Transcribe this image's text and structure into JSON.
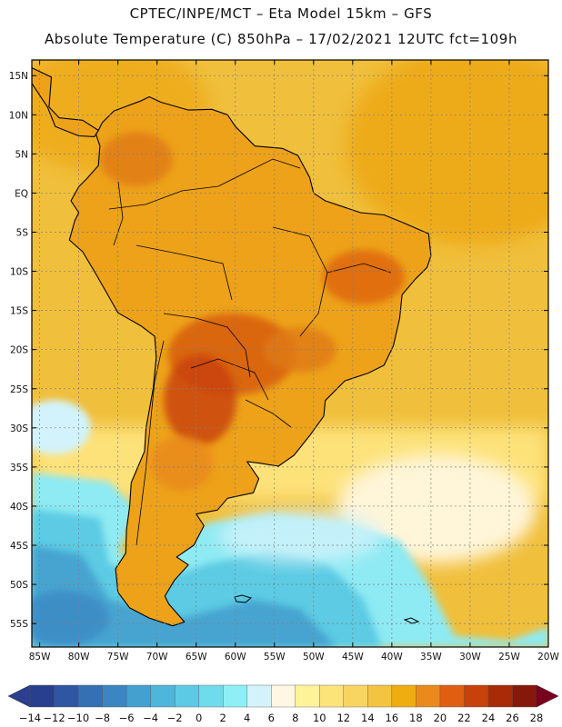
{
  "header": {
    "line1": "CPTEC/INPE/MCT –  Eta Model 15km – GFS",
    "line2": "Absolute Temperature (C) 850hPa – 17/02/2021 12UTC fct=109h"
  },
  "map": {
    "lon_range": [
      -86,
      -20
    ],
    "lat_range": [
      -58,
      17
    ],
    "lat_labels": [
      "15N",
      "10N",
      "5N",
      "EQ",
      "5S",
      "10S",
      "15S",
      "20S",
      "25S",
      "30S",
      "35S",
      "40S",
      "45S",
      "50S",
      "55S"
    ],
    "lat_values": [
      15,
      10,
      5,
      0,
      -5,
      -10,
      -15,
      -20,
      -25,
      -30,
      -35,
      -40,
      -45,
      -50,
      -55
    ],
    "lon_labels": [
      "85W",
      "80W",
      "75W",
      "70W",
      "65W",
      "60W",
      "55W",
      "50W",
      "45W",
      "40W",
      "35W",
      "30W",
      "25W",
      "20W"
    ],
    "lon_values": [
      -85,
      -80,
      -75,
      -70,
      -65,
      -60,
      -55,
      -50,
      -45,
      -40,
      -35,
      -30,
      -25,
      -20
    ],
    "ocean_color": "#f0c040",
    "land_color": "#e8a018"
  },
  "colorbar": {
    "labels": [
      "−14",
      "−12",
      "−10",
      "−8",
      "−6",
      "−4",
      "−2",
      "0",
      "2",
      "4",
      "6",
      "8",
      "10",
      "12",
      "14",
      "16",
      "18",
      "20",
      "22",
      "24",
      "26",
      "28"
    ],
    "under_color": "#2a3f8e",
    "over_color": "#7a0020",
    "colors": [
      "#283f8f",
      "#2f56a3",
      "#3570b4",
      "#3b86c2",
      "#44a0cf",
      "#4eb6d9",
      "#5bcbe3",
      "#6fdcec",
      "#8ef0f6",
      "#d2f3fb",
      "#fff7e3",
      "#fff39a",
      "#fde479",
      "#f8d560",
      "#f3c440",
      "#f0ad10",
      "#e98a1a",
      "#df5e10",
      "#c8400a",
      "#a82a07",
      "#86180a"
    ]
  }
}
